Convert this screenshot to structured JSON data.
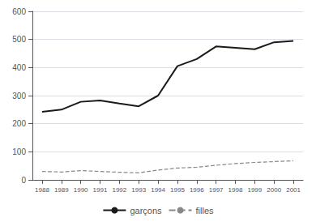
{
  "chart_data": {
    "type": "line",
    "x": [
      1988,
      1989,
      1990,
      1991,
      1992,
      1993,
      1994,
      1995,
      1996,
      1997,
      1998,
      1999,
      2000,
      2001
    ],
    "series": [
      {
        "name": "garçons",
        "color": "#1a1a1a",
        "line_style": "solid",
        "values": [
          242,
          250,
          278,
          283,
          272,
          262,
          300,
          405,
          430,
          475,
          470,
          465,
          490,
          495
        ]
      },
      {
        "name": "filles",
        "color": "#888888",
        "line_style": "dashed",
        "values": [
          30,
          28,
          33,
          30,
          27,
          25,
          35,
          42,
          45,
          52,
          58,
          62,
          65,
          68
        ]
      }
    ],
    "xlim": [
      1987.5,
      2001.5
    ],
    "xticks": [
      1988,
      1989,
      1990,
      1991,
      1992,
      1993,
      1994,
      1995,
      1996,
      1997,
      1998,
      1999,
      2000,
      2001
    ],
    "ylim": [
      0,
      600
    ],
    "yticks": [
      0,
      100,
      200,
      300,
      400,
      500,
      600
    ],
    "grid": true,
    "legend": "bottom"
  }
}
